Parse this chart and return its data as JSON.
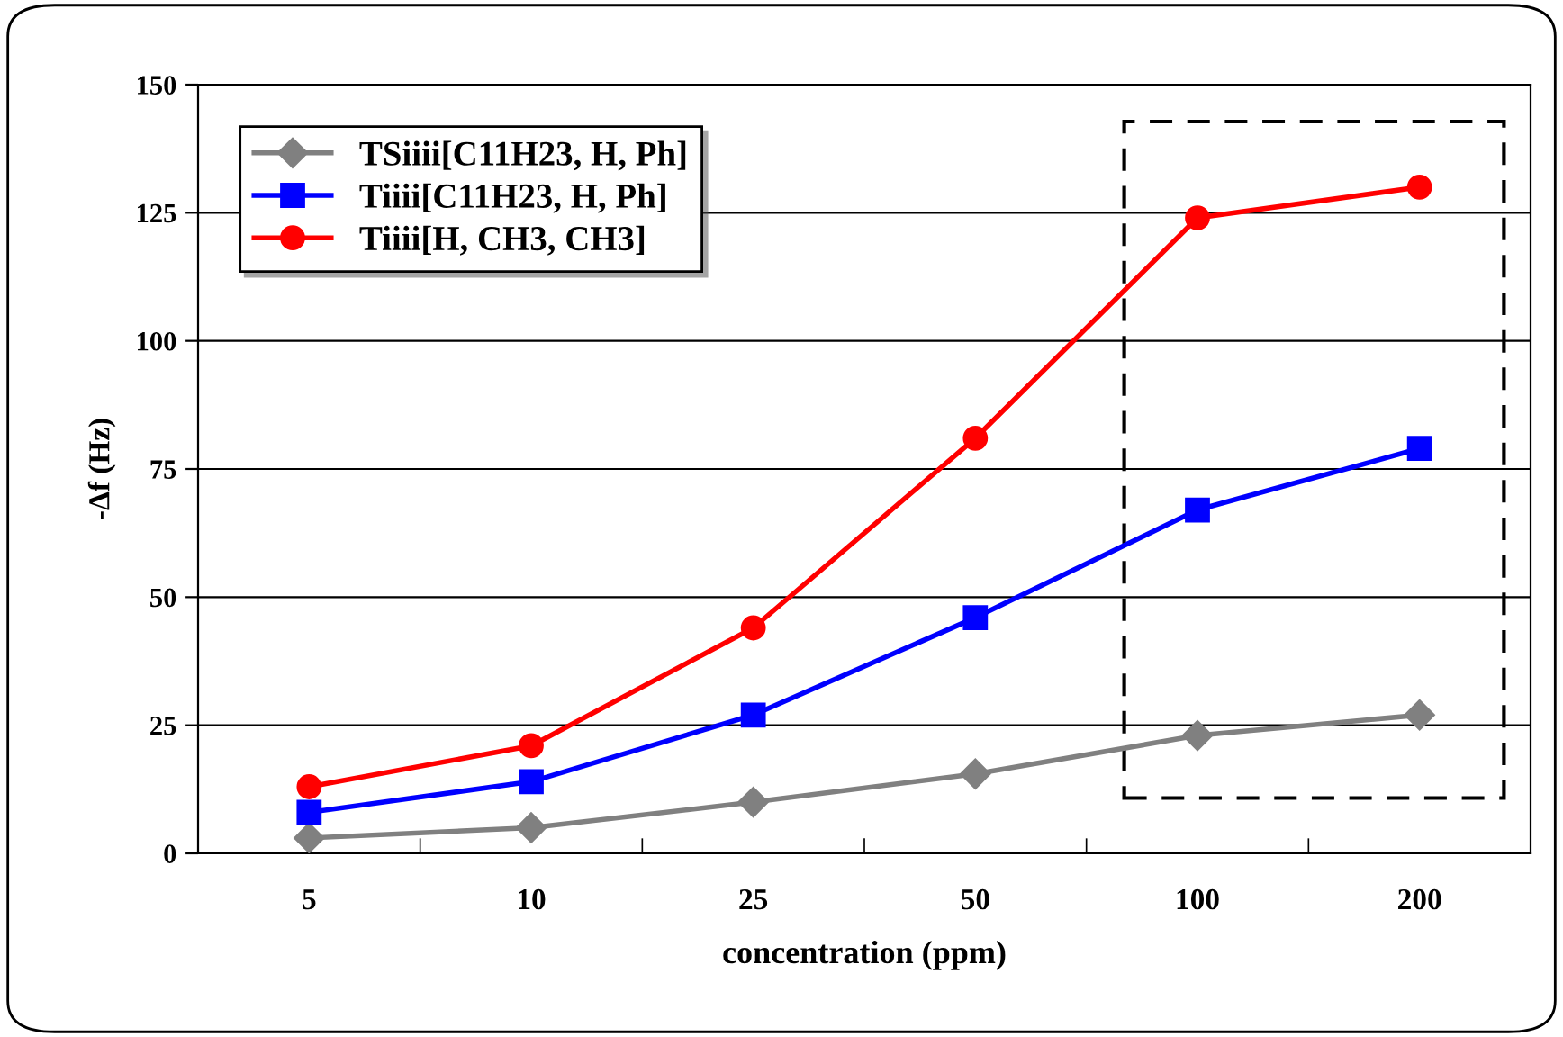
{
  "chart_data": {
    "type": "line",
    "xlabel": "concentration (ppm)",
    "ylabel": "-Δf (Hz)",
    "categories": [
      "5",
      "10",
      "25",
      "50",
      "100",
      "200"
    ],
    "series": [
      {
        "name": "TSiiii[C11H23, H, Ph]",
        "color": "#808080",
        "marker": "diamond",
        "values": [
          3,
          5,
          10,
          15.5,
          23,
          27
        ]
      },
      {
        "name": "Tiiii[C11H23, H, Ph]",
        "color": "#0000ff",
        "marker": "square",
        "values": [
          8,
          14,
          27,
          46,
          67,
          79
        ]
      },
      {
        "name": "Tiiii[H, CH3, CH3]",
        "color": "#ff0000",
        "marker": "circle",
        "values": [
          13,
          21,
          44,
          81,
          124,
          130
        ]
      }
    ],
    "ylim": [
      0,
      150
    ],
    "yticks": [
      0,
      25,
      50,
      75,
      100,
      125,
      150
    ],
    "grid": "y",
    "legend": "top left",
    "line_style": "solid"
  }
}
